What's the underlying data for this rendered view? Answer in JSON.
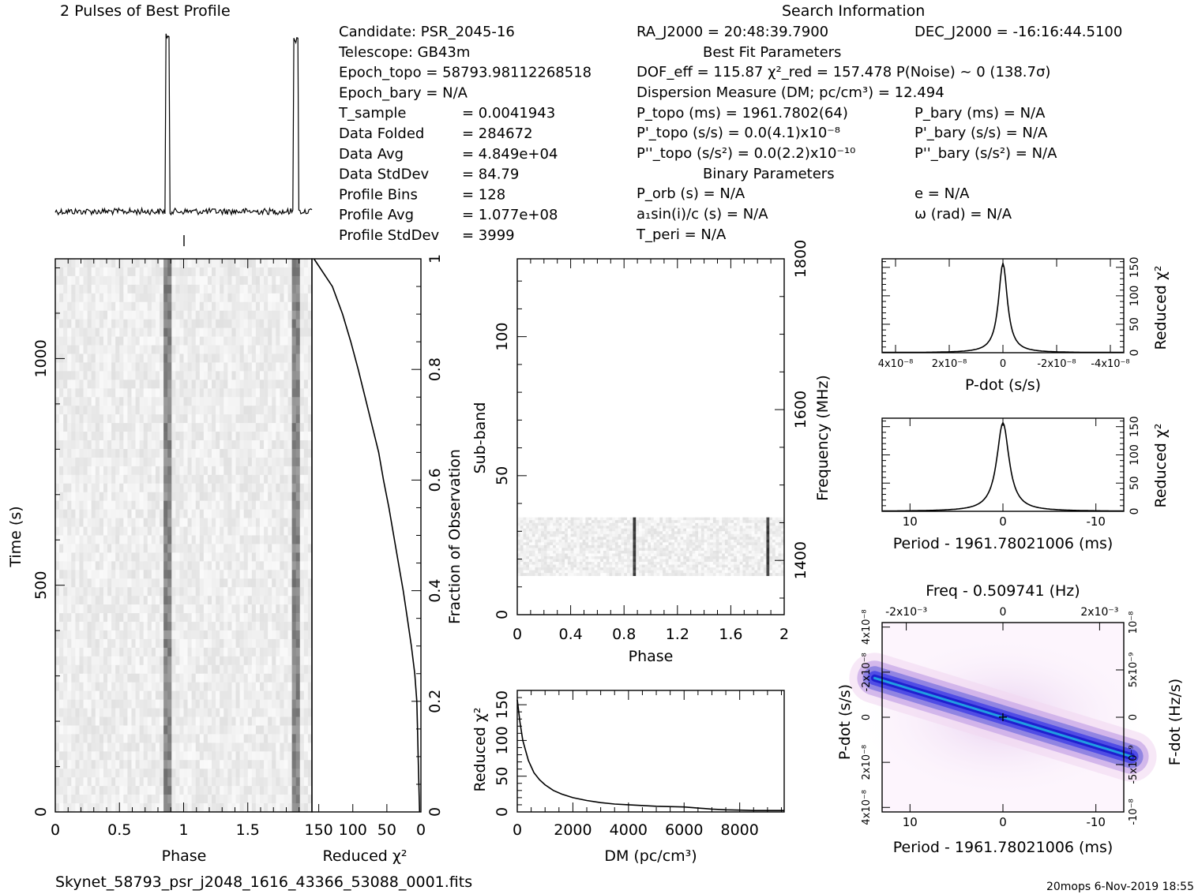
{
  "header": {
    "profile_title": "2 Pulses of Best Profile",
    "search_title": "Search Information"
  },
  "info_col1": [
    [
      "Candidate:  PSR_2045-16",
      ""
    ],
    [
      "Telescope:  GB43m",
      ""
    ],
    [
      "Epoch_topo = 58793.98112268518",
      ""
    ],
    [
      "Epoch_bary = N/A",
      ""
    ],
    [
      "T_sample",
      "=  0.0041943"
    ],
    [
      "Data Folded",
      "=  284672"
    ],
    [
      "Data Avg",
      "=  4.849e+04"
    ],
    [
      "Data StdDev",
      "=  84.79"
    ],
    [
      "Profile Bins",
      "=  128"
    ],
    [
      "Profile Avg",
      "=  1.077e+08"
    ],
    [
      "Profile StdDev",
      "=  3999"
    ]
  ],
  "info_col2": [
    "RA_J2000 = 20:48:39.7900",
    "Best Fit Parameters",
    "DOF_eff = 115.87  χ²_red = 157.478  P(Noise) ~ 0   (138.7σ)",
    "Dispersion Measure (DM; pc/cm³) = 12.494",
    "P_topo (ms) =  1961.7802(64)",
    "P'_topo (s/s) = 0.0(4.1)x10⁻⁸",
    "P''_topo (s/s²) = 0.0(2.2)x10⁻¹⁰",
    "Binary Parameters",
    "P_orb (s) = N/A",
    "a₁sin(i)/c (s) = N/A",
    "T_peri = N/A"
  ],
  "info_col3": [
    "DEC_J2000 = -16:16:44.5100",
    "P_bary (ms) = N/A",
    "P'_bary (s/s) = N/A",
    "P''_bary (s/s²) = N/A",
    "e = N/A",
    "ω (rad) = N/A"
  ],
  "footer": {
    "filename": "Skynet_58793_psr_j2048_1616_43366_53088_0001.fits",
    "stamp": "20mops  6-Nov-2019 18:55"
  },
  "chart_data": [
    {
      "id": "profile",
      "type": "line",
      "title": "2 Pulses of Best Profile",
      "x_range": [
        0,
        2
      ],
      "pulse_centers": [
        0.875,
        1.875
      ],
      "pulse_width": 0.035
    },
    {
      "id": "time_phase",
      "type": "heatmap",
      "xlabel": "Phase",
      "ylabel": "Time (s)",
      "x_range": [
        0,
        2
      ],
      "y_range": [
        0,
        1220
      ],
      "x_ticks": [
        "0",
        "0.5",
        "1",
        "1.5"
      ],
      "x_tick_values": [
        0,
        0.5,
        1,
        1.5
      ],
      "y_ticks": [
        "0",
        "500",
        "1000"
      ],
      "y_tick_values": [
        0,
        500,
        1000
      ],
      "pulse_phases": [
        0.875,
        1.875
      ]
    },
    {
      "id": "chi2_vs_time",
      "type": "line",
      "xlabel": "Reduced χ²",
      "ylabel_right": "Fraction of Observation",
      "x_ticks": [
        "150",
        "100",
        "50",
        "0"
      ],
      "x_tick_values": [
        150,
        100,
        50,
        0
      ],
      "x_range": [
        160,
        0
      ],
      "y_range": [
        0,
        1
      ],
      "y_ticks": [
        "0.2",
        "0.4",
        "0.6",
        "0.8",
        "1"
      ],
      "y_tick_values": [
        0.2,
        0.4,
        0.6,
        0.8,
        1
      ],
      "curve": {
        "fraction": [
          0,
          0.05,
          0.1,
          0.15,
          0.2,
          0.25,
          0.3,
          0.35,
          0.4,
          0.45,
          0.5,
          0.55,
          0.6,
          0.65,
          0.7,
          0.75,
          0.8,
          0.85,
          0.9,
          0.95,
          1.0
        ],
        "chi2": [
          2,
          3,
          4,
          5,
          6,
          9,
          14,
          20,
          26,
          33,
          40,
          47,
          55,
          62,
          72,
          82,
          92,
          103,
          115,
          130,
          157
        ]
      }
    },
    {
      "id": "subband",
      "type": "heatmap",
      "xlabel": "Phase",
      "ylabel": "Sub-band",
      "ylabel_right": "Frequency (MHz)",
      "x_range": [
        0,
        2
      ],
      "y_range": [
        0,
        128
      ],
      "x_ticks": [
        "0",
        "0.4",
        "0.8",
        "1.2",
        "1.6",
        "2"
      ],
      "x_tick_values": [
        0,
        0.4,
        0.8,
        1.2,
        1.6,
        2
      ],
      "y_ticks": [
        "0",
        "50",
        "100"
      ],
      "y_tick_values": [
        0,
        50,
        100
      ],
      "freq_range": [
        1328,
        1800
      ],
      "freq_ticks": [
        "1400",
        "1600",
        "1800"
      ],
      "freq_tick_values": [
        1400,
        1600,
        1800
      ],
      "data_band": [
        14,
        35
      ],
      "pulse_phases": [
        0.875,
        1.875
      ]
    },
    {
      "id": "dm_chi2",
      "type": "line",
      "xlabel": "DM (pc/cm³)",
      "ylabel": "Reduced χ²",
      "x_range": [
        0,
        9600
      ],
      "y_range": [
        0,
        170
      ],
      "x_ticks": [
        "0",
        "2000",
        "4000",
        "6000",
        "8000"
      ],
      "x_tick_values": [
        0,
        2000,
        4000,
        6000,
        8000
      ],
      "y_ticks": [
        "0",
        "50",
        "100",
        "150"
      ],
      "y_tick_values": [
        0,
        50,
        100,
        150
      ],
      "curve": {
        "dm": [
          0,
          100,
          200,
          400,
          600,
          800,
          1000,
          1300,
          1600,
          2000,
          2500,
          3000,
          3500,
          4000,
          5000,
          6000,
          7000,
          7500,
          8000,
          8500,
          9000,
          9600
        ],
        "chi2": [
          157,
          125,
          100,
          72,
          55,
          45,
          38,
          30,
          25,
          20,
          16,
          13,
          11,
          10,
          8,
          7,
          4,
          3,
          2.5,
          2,
          2,
          2
        ]
      }
    },
    {
      "id": "pdot_chi2",
      "type": "line",
      "xlabel": "P-dot (s/s)",
      "ylabel_right": "Reduced χ²",
      "x_range": [
        4.5e-08,
        -4.5e-08
      ],
      "y_range": [
        0,
        165
      ],
      "x_tick_values": [
        4e-08,
        2e-08,
        0,
        -2e-08,
        -4e-08
      ],
      "x_ticks": [
        "4x10⁻⁸",
        "2x10⁻⁸",
        "0",
        "-2x10⁻⁸",
        "-4x10⁻⁸"
      ],
      "y_ticks": [
        "0",
        "50",
        "100",
        "150"
      ],
      "y_tick_values": [
        0,
        50,
        100,
        150
      ],
      "peak": 157,
      "width": 2e-09
    },
    {
      "id": "period_chi2",
      "type": "line",
      "xlabel": "Period - 1961.78021006 (ms)",
      "ylabel_right": "Reduced χ²",
      "x_range": [
        13,
        -13
      ],
      "y_range": [
        0,
        165
      ],
      "x_ticks": [
        "10",
        "0",
        "-10"
      ],
      "x_tick_values": [
        10,
        0,
        -10
      ],
      "y_ticks": [
        "0",
        "50",
        "100",
        "150"
      ],
      "y_tick_values": [
        0,
        50,
        100,
        150
      ],
      "peak": 157,
      "width": 0.8
    },
    {
      "id": "p_pdot",
      "type": "heatmap",
      "title": "Freq - 0.509741 (Hz)",
      "xlabel": "Period - 1961.78021006 (ms)",
      "ylabel": "P-dot (s/s)",
      "ylabel_right": "F-dot (Hz/s)",
      "x_range": [
        13,
        -13
      ],
      "y_range": [
        -4.2e-08,
        4.2e-08
      ],
      "x_ticks": [
        "10",
        "0",
        "-10"
      ],
      "x_tick_values": [
        10,
        0,
        -10
      ],
      "top_ticks": [
        "-2x10⁻³",
        "0",
        "2x10⁻³"
      ],
      "top_tick_values": [
        -0.002,
        0,
        0.002
      ],
      "left_ticks": [
        "4x10⁻⁸",
        "2x10⁻⁸",
        "0",
        "-2x10⁻⁸",
        "4x10⁻⁸"
      ],
      "right_ticks": [
        "-10⁻⁸",
        "-5x10⁻⁹",
        "0",
        "5x10⁻⁹",
        "10⁻⁸"
      ],
      "best": [
        0,
        0
      ]
    }
  ]
}
